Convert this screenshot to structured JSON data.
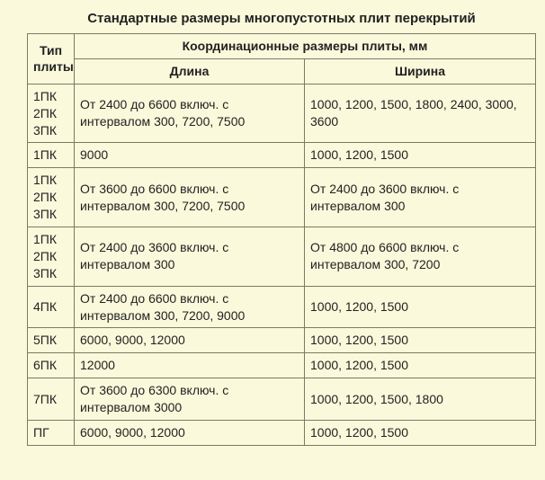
{
  "title": "Стандартные размеры многопустотных плит перекрытий",
  "header": {
    "type": "Тип плиты",
    "group": "Координационные размеры плиты, мм",
    "length": "Длина",
    "width": "Ширина"
  },
  "rows": [
    {
      "type": "1ПК\n2ПК\n3ПК",
      "length": "От 2400 до 6600 включ. с интервалом 300, 7200, 7500",
      "width": "1000, 1200, 1500, 1800, 2400, 3000, 3600"
    },
    {
      "type": "1ПК",
      "length": "9000",
      "width": "1000, 1200, 1500"
    },
    {
      "type": "1ПК\n2ПК\n3ПК",
      "length": "От 3600 до 6600 включ. с интервалом 300, 7200, 7500",
      "width": "От 2400 до 3600 включ. с интервалом 300"
    },
    {
      "type": "1ПК\n2ПК\n3ПК",
      "length": "От 2400 до 3600 включ. с интервалом 300",
      "width": "От 4800 до 6600 включ. с интервалом 300, 7200"
    },
    {
      "type": "4ПК",
      "length": "От 2400 до 6600 включ. с интервалом 300, 7200, 9000",
      "width": "1000, 1200, 1500"
    },
    {
      "type": "5ПК",
      "length": "6000, 9000, 12000",
      "width": "1000, 1200, 1500"
    },
    {
      "type": "6ПК",
      "length": "12000",
      "width": "1000, 1200, 1500"
    },
    {
      "type": "7ПК",
      "length": "От 3600 до 6300 включ. с интервалом 3000",
      "width": "1000, 1200, 1500, 1800"
    },
    {
      "type": "ПГ",
      "length": "6000, 9000, 12000",
      "width": "1000, 1200, 1500"
    }
  ],
  "colors": {
    "background": "#fbf9db",
    "border": "#7a7a66",
    "text": "#222222"
  },
  "font": {
    "family": "Arial",
    "size_pt": 10.5,
    "title_size_pt": 11,
    "title_weight": "bold",
    "header_weight": "bold"
  }
}
